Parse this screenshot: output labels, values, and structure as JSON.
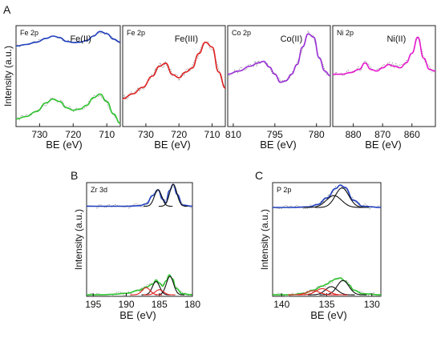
{
  "figure": {
    "panel_labels": [
      "A",
      "B",
      "C"
    ]
  },
  "chart_data": [
    {
      "panel": "A1",
      "type": "line",
      "tag": "Fe 2p",
      "title": "Fe(II)",
      "xlabel": "BE (eV)",
      "ylabel": "Intensity (a.u.)",
      "xlim": [
        737,
        706
      ],
      "xticks": [
        730,
        720,
        710
      ],
      "grid": false,
      "series": [
        {
          "color": "#1f3fbf",
          "x": [
            737,
            734,
            731,
            728,
            726,
            724,
            722,
            720,
            718,
            716,
            714,
            712,
            710,
            708,
            706
          ],
          "values": [
            0.6,
            0.64,
            0.7,
            0.8,
            0.86,
            0.82,
            0.72,
            0.69,
            0.7,
            0.74,
            0.86,
            0.98,
            0.92,
            0.78,
            0.7
          ]
        },
        {
          "color": "#2ec42e",
          "x": [
            737,
            734,
            731,
            728,
            726,
            724,
            722,
            720,
            718,
            716,
            714,
            712,
            710,
            708,
            706
          ],
          "values": [
            0.12,
            0.16,
            0.24,
            0.38,
            0.44,
            0.4,
            0.3,
            0.26,
            0.28,
            0.34,
            0.46,
            0.52,
            0.4,
            0.2,
            0.05
          ]
        }
      ]
    },
    {
      "panel": "A2",
      "type": "line",
      "tag": "Fe 2p",
      "title": "Fe(III)",
      "xlim": [
        737,
        706
      ],
      "xticks": [
        730,
        720,
        710
      ],
      "grid": false,
      "series": [
        {
          "color": "#e02020",
          "x": [
            737,
            734,
            731,
            728,
            726,
            724,
            722,
            720,
            718,
            716,
            714,
            712,
            710,
            708,
            706
          ],
          "values": [
            0.22,
            0.28,
            0.36,
            0.5,
            0.62,
            0.66,
            0.52,
            0.48,
            0.55,
            0.6,
            0.78,
            0.92,
            0.86,
            0.55,
            0.35
          ]
        }
      ]
    },
    {
      "panel": "A3",
      "type": "line",
      "tag": "Co 2p",
      "title": "Co(II)",
      "xlim": [
        812,
        775
      ],
      "xticks": [
        810,
        795,
        780
      ],
      "grid": false,
      "series": [
        {
          "color": "#9b2fd6",
          "x": [
            812,
            808,
            804,
            801,
            799,
            797,
            795,
            793,
            791,
            789,
            787,
            785,
            783,
            781,
            779,
            777,
            775
          ],
          "values": [
            0.46,
            0.5,
            0.56,
            0.6,
            0.62,
            0.55,
            0.46,
            0.36,
            0.38,
            0.46,
            0.58,
            0.8,
            0.96,
            0.92,
            0.66,
            0.5,
            0.44
          ]
        }
      ]
    },
    {
      "panel": "A4",
      "type": "line",
      "tag": "Ni 2p",
      "title": "Ni(II)",
      "xlim": [
        887,
        852
      ],
      "xticks": [
        880,
        870,
        860
      ],
      "grid": false,
      "series": [
        {
          "color": "#e81bd0",
          "x": [
            887,
            884,
            881,
            878,
            876,
            874,
            872,
            870,
            868,
            866,
            864,
            862,
            860,
            858,
            856,
            854,
            852
          ],
          "values": [
            0.46,
            0.46,
            0.48,
            0.52,
            0.6,
            0.52,
            0.5,
            0.54,
            0.58,
            0.56,
            0.54,
            0.6,
            0.72,
            0.92,
            0.66,
            0.52,
            0.5
          ]
        }
      ]
    },
    {
      "panel": "B",
      "type": "line",
      "tag": "Zr 3d",
      "xlabel": "BE (eV)",
      "ylabel": "Intensity (a.u.)",
      "xlim": [
        196,
        180
      ],
      "xticks": [
        195,
        190,
        185,
        180
      ],
      "grid": false,
      "series": [
        {
          "color": "#1f3fbf",
          "x": [
            196,
            194,
            192,
            190,
            188,
            187,
            186,
            185.2,
            184.5,
            184,
            183.5,
            182.9,
            182.3,
            181.5,
            180
          ],
          "values": [
            0.6,
            0.6,
            0.6,
            0.6,
            0.61,
            0.64,
            0.78,
            0.88,
            0.72,
            0.66,
            0.86,
            0.97,
            0.8,
            0.62,
            0.6
          ]
        },
        {
          "color": "#2ec42e",
          "x": [
            196,
            194,
            192,
            190,
            188,
            187,
            186,
            185.5,
            185,
            184.5,
            184,
            183.5,
            183,
            182.5,
            181.5,
            180
          ],
          "values": [
            0.03,
            0.03,
            0.04,
            0.06,
            0.12,
            0.18,
            0.24,
            0.32,
            0.26,
            0.2,
            0.3,
            0.42,
            0.34,
            0.16,
            0.05,
            0.03
          ]
        }
      ]
    },
    {
      "panel": "C",
      "type": "line",
      "tag": "P 2p",
      "xlabel": "BE (eV)",
      "ylabel": "Intensity (a.u.)",
      "xlim": [
        141,
        129
      ],
      "xticks": [
        140,
        135,
        130
      ],
      "grid": false,
      "series": [
        {
          "color": "#1f3fbf",
          "x": [
            141,
            139,
            137,
            136,
            135,
            134,
            133.5,
            133,
            132,
            131,
            129
          ],
          "values": [
            0.58,
            0.58,
            0.59,
            0.63,
            0.74,
            0.9,
            0.96,
            0.92,
            0.7,
            0.6,
            0.58
          ]
        },
        {
          "color": "#2ec42e",
          "x": [
            141,
            139,
            137.5,
            136.5,
            135.5,
            135,
            134.5,
            134,
            133.5,
            133,
            132.5,
            132,
            131,
            129
          ],
          "values": [
            0.03,
            0.03,
            0.06,
            0.12,
            0.2,
            0.24,
            0.3,
            0.34,
            0.36,
            0.3,
            0.22,
            0.12,
            0.05,
            0.03
          ]
        }
      ]
    }
  ]
}
